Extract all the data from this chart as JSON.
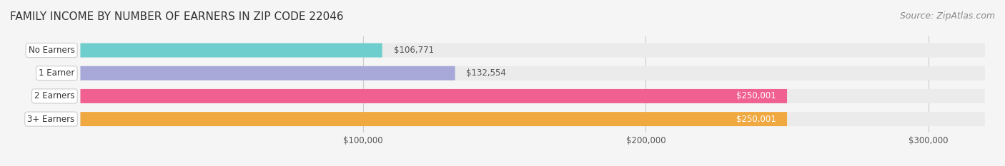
{
  "title": "FAMILY INCOME BY NUMBER OF EARNERS IN ZIP CODE 22046",
  "source": "Source: ZipAtlas.com",
  "categories": [
    "No Earners",
    "1 Earner",
    "2 Earners",
    "3+ Earners"
  ],
  "values": [
    106771,
    132554,
    250001,
    250001
  ],
  "bar_colors": [
    "#6ecece",
    "#a8a8d8",
    "#f06090",
    "#f0a840"
  ],
  "label_colors": [
    "#333333",
    "#333333",
    "#ffffff",
    "#ffffff"
  ],
  "xlim": [
    0,
    320000
  ],
  "xticks": [
    100000,
    200000,
    300000
  ],
  "xtick_labels": [
    "$100,000",
    "$200,000",
    "$300,000"
  ],
  "value_labels": [
    "$106,771",
    "$132,554",
    "$250,001",
    "$250,001"
  ],
  "bg_color": "#f5f5f5",
  "bar_bg_color": "#ebebeb",
  "title_fontsize": 11,
  "source_fontsize": 9,
  "bar_height": 0.62
}
